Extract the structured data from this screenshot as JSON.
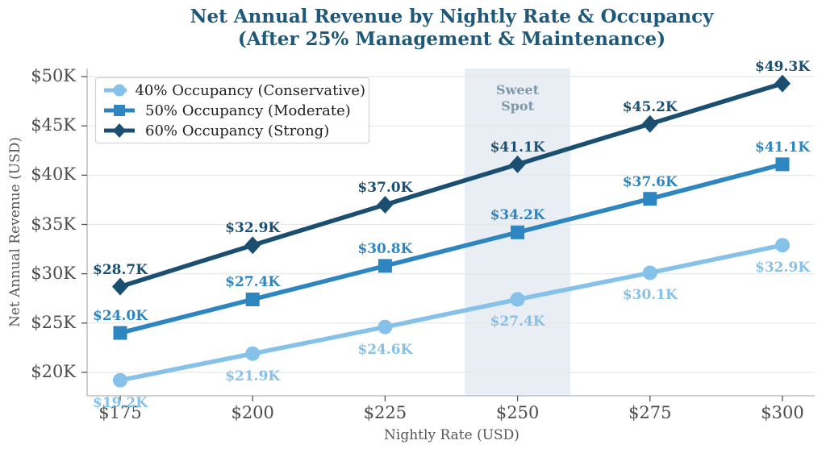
{
  "title": {
    "line1": "Net Annual Revenue by Nightly Rate & Occupancy",
    "line2": "(After 25% Management & Maintenance)"
  },
  "chart_data": {
    "type": "line",
    "title": "Net Annual Revenue by Nightly Rate & Occupancy (After 25% Management & Maintenance)",
    "xlabel": "Nightly Rate (USD)",
    "ylabel": "Net Annual Revenue (USD)",
    "x": [
      175,
      200,
      225,
      250,
      275,
      300
    ],
    "x_tick_labels": [
      "$175",
      "$200",
      "$225",
      "$250",
      "$275",
      "$300"
    ],
    "y_tick_values": [
      20,
      25,
      30,
      35,
      40,
      45,
      50
    ],
    "y_tick_labels": [
      "$20K",
      "$25K",
      "$30K",
      "$35K",
      "$40K",
      "$45K",
      "$50K"
    ],
    "y_unit": "thousand USD",
    "xlim": [
      169,
      306
    ],
    "ylim": [
      17.1,
      50.9
    ],
    "grid": "horizontal",
    "legend_position": "upper-left",
    "series": [
      {
        "name": "40% Occupancy (Conservative)",
        "marker": "circle",
        "color": "#85c1e9",
        "values_k": [
          19.2,
          21.9,
          24.6,
          27.4,
          30.1,
          32.9
        ],
        "point_labels": [
          "$19.2K",
          "$21.9K",
          "$24.6K",
          "$27.4K",
          "$30.1K",
          "$32.9K"
        ],
        "label_side": "below"
      },
      {
        "name": "50% Occupancy (Moderate)",
        "marker": "square",
        "color": "#2e86c1",
        "values_k": [
          24.0,
          27.4,
          30.8,
          34.2,
          37.6,
          41.1
        ],
        "point_labels": [
          "$24.0K",
          "$27.4K",
          "$30.8K",
          "$34.2K",
          "$37.6K",
          "$41.1K"
        ],
        "label_side": "above"
      },
      {
        "name": "60% Occupancy (Strong)",
        "marker": "diamond",
        "color": "#1b4f72",
        "values_k": [
          28.7,
          32.9,
          37.0,
          41.1,
          45.2,
          49.3
        ],
        "point_labels": [
          "$28.7K",
          "$32.9K",
          "$37.0K",
          "$41.1K",
          "$45.2K",
          "$49.3K"
        ],
        "label_side": "above"
      }
    ],
    "annotation_band": {
      "label_lines": [
        "Sweet",
        "Spot"
      ],
      "x_from": 240,
      "x_to": 260,
      "band_color": "#e8eef3",
      "text_color": "#7f97a8"
    }
  },
  "colors": {
    "title": "#1f5878",
    "axis_text": "#4d4d4d",
    "grid": "#e7e7e7",
    "spine": "#b3b3b3",
    "tick": "#555555",
    "legend_text": "#1f1f1f",
    "legend_border": "#cccccc",
    "background": "#ffffff"
  }
}
